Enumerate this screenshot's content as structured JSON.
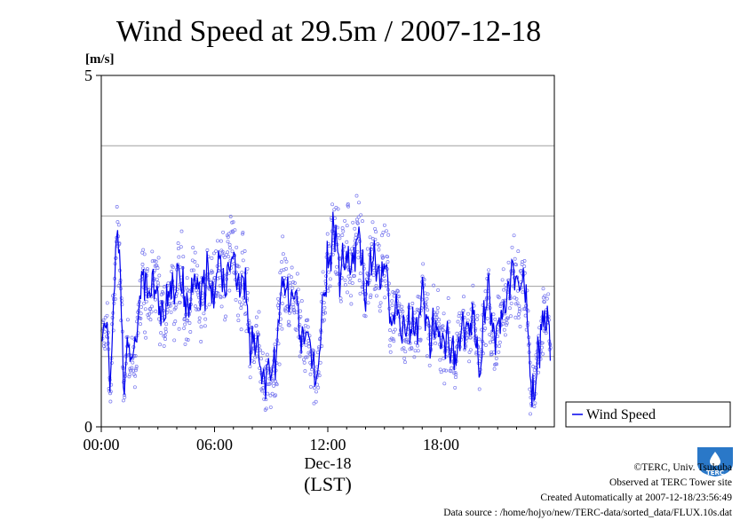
{
  "chart_data": {
    "type": "scatter",
    "title": "Wind Speed at 29.5m / 2007-12-18",
    "ylabel": "[m/s]",
    "xlabel_date": "Dec-18",
    "xlabel_tz": "(LST)",
    "ylim": [
      0,
      5
    ],
    "yticks": [
      0,
      5
    ],
    "ygrid": [
      1,
      2,
      3,
      4
    ],
    "xlim_hours": [
      0,
      24
    ],
    "xticks": [
      {
        "hour": 0,
        "label": "00:00"
      },
      {
        "hour": 6,
        "label": "06:00"
      },
      {
        "hour": 12,
        "label": "12:00"
      },
      {
        "hour": 18,
        "label": "18:00"
      }
    ],
    "legend": {
      "label": "Wind Speed",
      "position": "right-bottom"
    },
    "series": [
      {
        "name": "Wind Speed",
        "kind": "10s samples (scatter) with running mean (line)",
        "color": "#0000ee",
        "scatter_color": "#7777ee",
        "profile_hours": [
          0,
          0.3,
          0.5,
          0.8,
          1.0,
          1.2,
          1.3,
          1.6,
          1.8,
          2.0,
          2.5,
          3.0,
          3.5,
          4.0,
          4.5,
          5.0,
          5.5,
          6.0,
          6.5,
          7.0,
          7.5,
          8.0,
          8.5,
          9.0,
          9.5,
          10.0,
          10.5,
          11.0,
          11.5,
          12.0,
          12.5,
          13.0,
          13.5,
          14.0,
          14.5,
          15.0,
          15.5,
          16.0,
          16.5,
          17.0,
          17.5,
          18.0,
          18.5,
          19.0,
          19.5,
          20.0,
          20.5,
          21.0,
          21.5,
          22.0,
          22.5,
          22.8,
          23.2,
          23.5,
          23.8
        ],
        "profile_values": [
          1.0,
          1.4,
          0.8,
          2.6,
          2.3,
          0.6,
          1.1,
          0.8,
          1.2,
          1.7,
          2.1,
          1.8,
          1.6,
          2.2,
          1.7,
          2.0,
          1.9,
          2.1,
          2.2,
          2.4,
          2.0,
          1.2,
          0.9,
          0.5,
          1.8,
          2.0,
          1.5,
          1.1,
          0.8,
          2.4,
          2.6,
          2.3,
          2.6,
          2.1,
          2.4,
          2.2,
          1.6,
          1.5,
          1.3,
          1.8,
          1.3,
          1.4,
          1.0,
          1.2,
          1.6,
          1.0,
          1.8,
          1.2,
          2.0,
          2.2,
          1.8,
          0.5,
          1.0,
          1.9,
          1.0
        ],
        "profile_spread": [
          0.4,
          0.5,
          0.5,
          0.7,
          0.6,
          0.5,
          0.4,
          0.4,
          0.5,
          0.6,
          0.6,
          0.6,
          0.6,
          0.7,
          0.6,
          0.6,
          0.6,
          0.7,
          0.8,
          0.8,
          0.7,
          0.6,
          0.6,
          0.5,
          0.7,
          0.7,
          0.6,
          0.6,
          0.6,
          0.8,
          0.9,
          0.9,
          0.9,
          0.8,
          0.8,
          0.8,
          0.6,
          0.6,
          0.5,
          0.6,
          0.5,
          0.5,
          0.5,
          0.5,
          0.6,
          0.5,
          0.6,
          0.5,
          0.7,
          0.8,
          0.7,
          0.4,
          0.5,
          0.6,
          0.4
        ]
      }
    ]
  },
  "footer": {
    "copyright": "©TERC, Univ. Tsukuba",
    "observed": "Observed at TERC Tower site",
    "created": "Created Automatically at 2007-12-18/23:56:49",
    "source": "Data source : /home/hojyo/new/TERC-data/sorted_data/FLUX.10s.dat",
    "logo_text": "TERC"
  }
}
